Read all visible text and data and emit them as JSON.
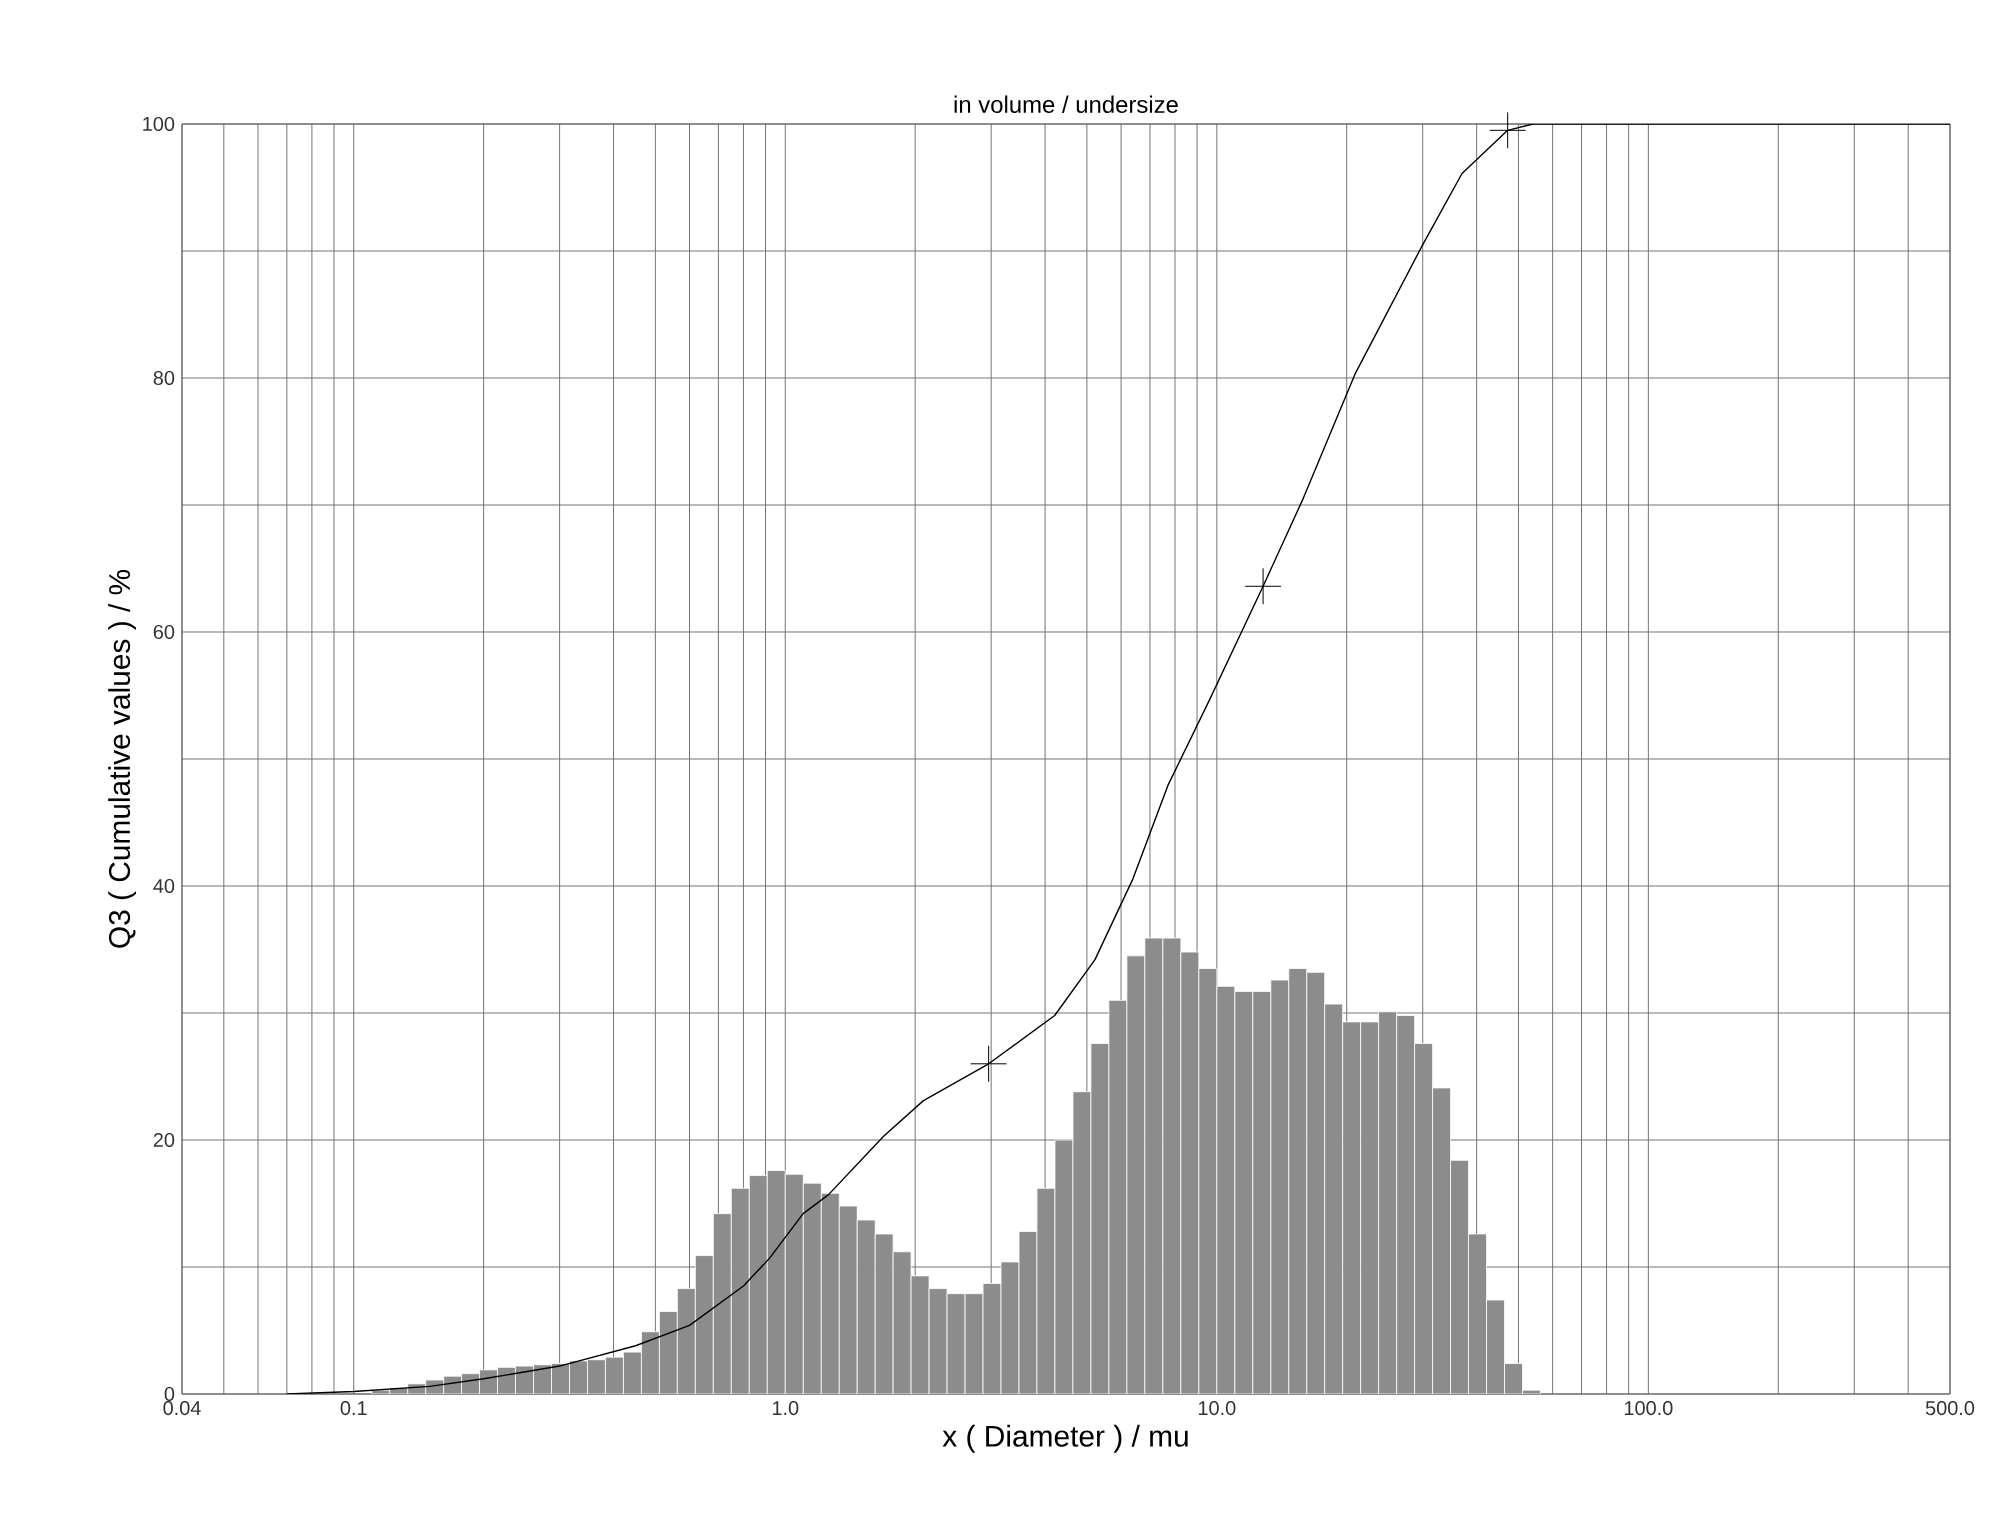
{
  "chart_data": {
    "type": "histogram",
    "title": "in volume / undersize",
    "xlabel": "x ( Diameter ) / mu",
    "ylabel": "Q3 ( Cumulative values ) / %",
    "log": "x",
    "grid": true,
    "xlim": [
      0.04,
      500
    ],
    "ylim": [
      0,
      100
    ],
    "xticks": [
      0.04,
      {
        "value": 0.05,
        "label": null
      },
      {
        "value": 0.06,
        "label": null
      },
      {
        "value": 0.07,
        "label": null
      },
      {
        "value": 0.08,
        "label": null
      },
      {
        "value": 0.09,
        "label": null
      },
      0.1,
      {
        "value": 0.2,
        "label": null
      },
      {
        "value": 0.3,
        "label": null
      },
      {
        "value": 0.4,
        "label": null
      },
      {
        "value": 0.5,
        "label": null
      },
      {
        "value": 0.6,
        "label": null
      },
      {
        "value": 0.7,
        "label": null
      },
      {
        "value": 0.8,
        "label": null
      },
      {
        "value": 0.9,
        "label": null
      },
      {
        "value": 1,
        "label": "1.0"
      },
      {
        "value": 2,
        "label": null
      },
      {
        "value": 3,
        "label": null
      },
      {
        "value": 4,
        "label": null
      },
      {
        "value": 5,
        "label": null
      },
      {
        "value": 6,
        "label": null
      },
      {
        "value": 7,
        "label": null
      },
      {
        "value": 8,
        "label": null
      },
      {
        "value": 9,
        "label": null
      },
      {
        "value": 10,
        "label": "10.0"
      },
      {
        "value": 20,
        "label": null
      },
      {
        "value": 30,
        "label": null
      },
      {
        "value": 40,
        "label": null
      },
      {
        "value": 50,
        "label": null
      },
      {
        "value": 60,
        "label": null
      },
      {
        "value": 70,
        "label": null
      },
      {
        "value": 80,
        "label": null
      },
      {
        "value": 90,
        "label": null
      },
      {
        "value": 100,
        "label": "100.0"
      },
      {
        "value": 200,
        "label": null
      },
      {
        "value": 300,
        "label": null
      },
      {
        "value": 400,
        "label": null
      },
      {
        "value": 500,
        "label": "500.0"
      }
    ],
    "yticks": [
      0,
      {
        "value": 10,
        "label": null
      },
      20,
      {
        "value": 30,
        "label": null
      },
      40,
      {
        "value": 50,
        "label": null
      },
      60,
      {
        "value": 70,
        "label": null
      },
      80,
      {
        "value": 90,
        "label": null
      },
      100
    ],
    "series": [
      {
        "type": "histogram",
        "color": "#8c8c8c",
        "bins": [
          0.1101,
          0.1212,
          0.1334,
          0.1468,
          0.1616,
          0.1778,
          0.1957,
          0.2154,
          0.2371,
          0.261,
          0.2873,
          0.3162,
          0.3481,
          0.3831,
          0.4217,
          0.4642,
          0.5109,
          0.5623,
          0.619,
          0.6813,
          0.7499,
          0.8254,
          0.9085,
          1,
          1.101,
          1.212,
          1.334,
          1.468,
          1.616,
          1.778,
          1.957,
          2.154,
          2.371,
          2.61,
          2.873,
          3.162,
          3.481,
          3.831,
          4.217,
          4.642,
          5.109,
          5.623,
          6.19,
          6.813,
          7.499,
          8.254,
          9.085,
          10,
          11.01,
          12.12,
          13.34,
          14.68,
          16.16,
          17.78,
          19.57,
          21.54,
          23.71,
          26.1,
          28.73,
          31.62,
          34.81,
          38.31,
          42.17,
          46.42,
          51.09,
          56.23
        ],
        "values": [
          0.3,
          0.5,
          0.8,
          1.1,
          1.4,
          1.6,
          1.9,
          2.1,
          2.2,
          2.3,
          2.4,
          2.6,
          2.7,
          2.9,
          3.3,
          4.9,
          6.5,
          8.3,
          10.9,
          14.2,
          16.2,
          17.2,
          17.6,
          17.3,
          16.6,
          15.8,
          14.8,
          13.7,
          12.6,
          11.2,
          9.3,
          8.3,
          7.9,
          7.9,
          8.7,
          10.4,
          12.8,
          16.2,
          20.0,
          23.8,
          27.6,
          31.0,
          34.5,
          35.9,
          35.9,
          34.8,
          33.5,
          32.1,
          31.7,
          31.7,
          32.6,
          33.5,
          33.2,
          30.7,
          29.3,
          29.3,
          30.1,
          29.8,
          27.6,
          24.1,
          18.4,
          12.6,
          7.4,
          2.4,
          0.3
        ]
      },
      {
        "type": "line",
        "color": "#000000",
        "line_style": "solid",
        "x": [
          0.07,
          0.1,
          0.15,
          0.2,
          0.3,
          0.45,
          0.6,
          0.8,
          0.92,
          1.1,
          1.26,
          1.69,
          2.09,
          2.96,
          4.21,
          5.22,
          6.38,
          7.7,
          9.6,
          12.8,
          15.8,
          20.9,
          29.9,
          37,
          47.2,
          54,
          500
        ],
        "values": [
          0,
          0.2,
          0.6,
          1.2,
          2.2,
          3.8,
          5.4,
          8.5,
          10.7,
          14.2,
          15.7,
          20.3,
          23.1,
          26.0,
          29.8,
          34.2,
          40.5,
          47.9,
          54.6,
          63.6,
          70.4,
          80.3,
          90.4,
          96.1,
          99.5,
          100,
          100
        ]
      },
      {
        "type": "scatter",
        "color": "#000000",
        "marker": "cross",
        "x": [
          2.96,
          12.8,
          47.2
        ],
        "values": [
          26.0,
          63.6,
          99.5
        ]
      }
    ]
  }
}
